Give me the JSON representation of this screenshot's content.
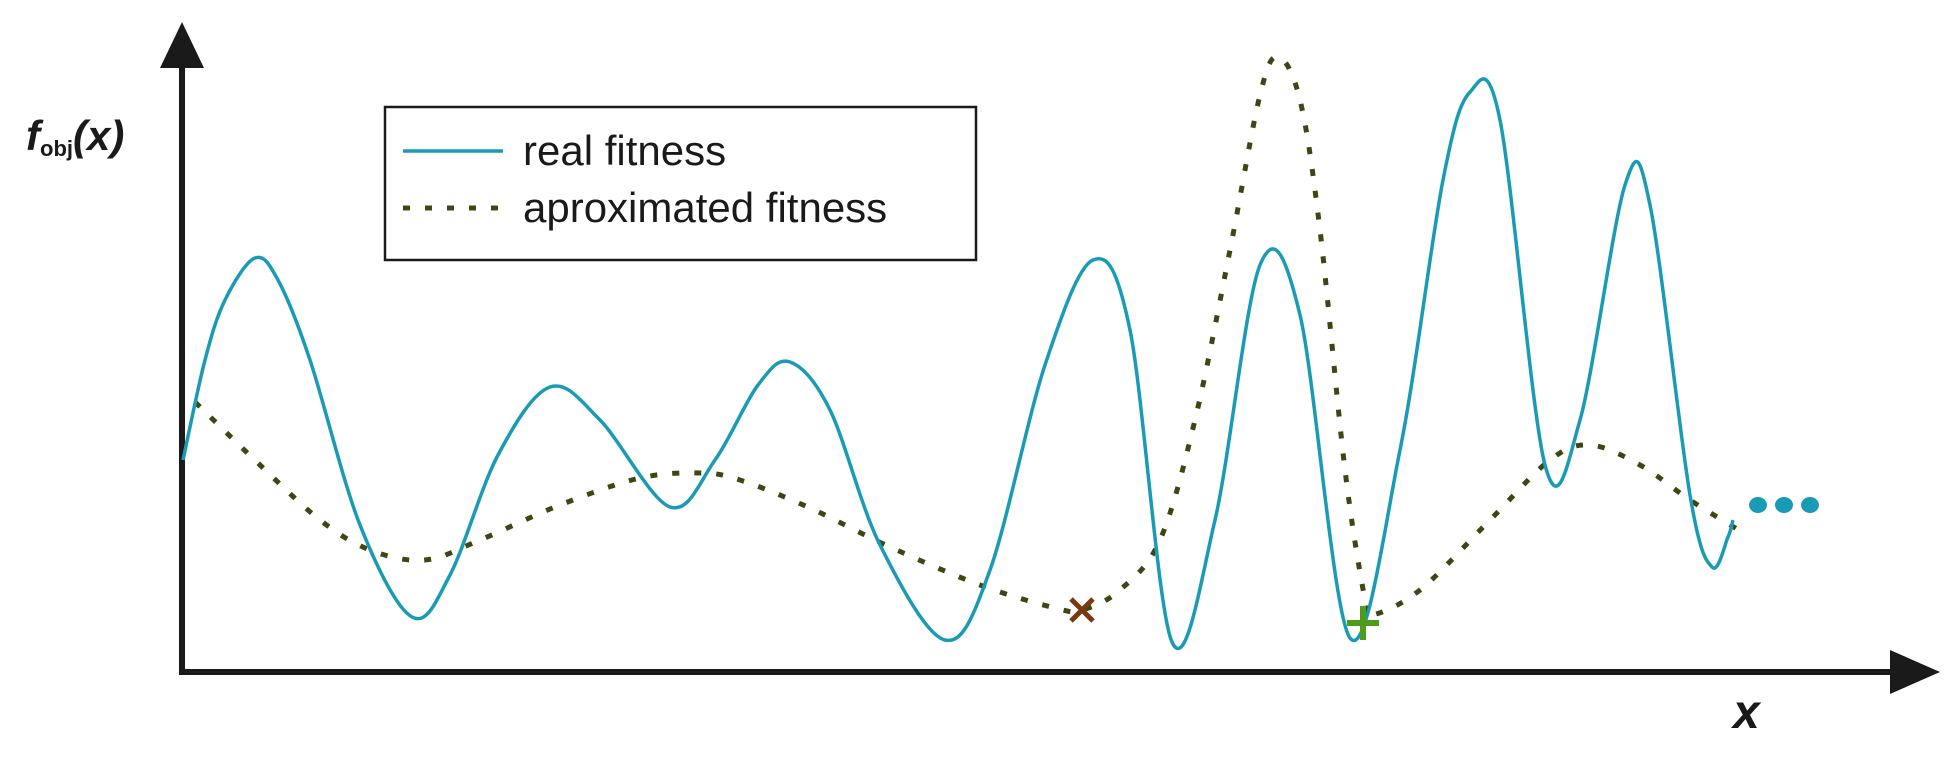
{
  "axes": {
    "y_label_main": "f",
    "y_label_sub": "obj",
    "y_label_arg": "(x)",
    "x_label": "x"
  },
  "legend": {
    "real_label": "real fitness",
    "approx_label": "aproximated fitness"
  },
  "colors": {
    "real": "#1a9bb5",
    "approx": "#3d4712",
    "axis": "#1a1a1a",
    "approx_min_marker": "#7a3a10",
    "real_min_marker": "#4f9b1d",
    "continuation": "#1a9bb5"
  },
  "markers": {
    "approx_min_icon": "x-mark-icon",
    "real_min_icon": "plus-mark-icon",
    "continuation_icon": "ellipsis-icon"
  }
}
